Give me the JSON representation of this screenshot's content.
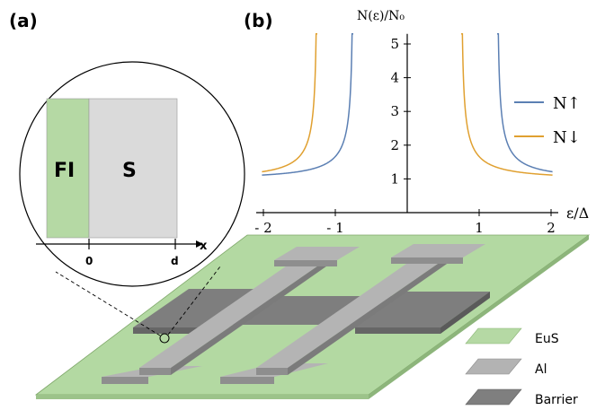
{
  "panels": {
    "a_label": "(a)",
    "b_label": "(b)"
  },
  "inset": {
    "fi_label": "FI",
    "s_label": "S",
    "axis_label": "x",
    "tick_0": "0",
    "tick_d": "d",
    "fi_color": "#b5d9a4",
    "s_color": "#dadada"
  },
  "chart_data": {
    "type": "line",
    "ylabel": "N(ε)/N₀",
    "xlabel": "ε/Δ",
    "xlim": [
      -2.1,
      2.1
    ],
    "ylim": [
      0,
      5.3
    ],
    "x_ticks": [
      -2,
      -1,
      1,
      2
    ],
    "x_tick_labels": [
      "- 2",
      "- 1",
      "1",
      "2"
    ],
    "y_ticks": [
      1,
      2,
      3,
      4,
      5
    ],
    "y_tick_labels": [
      "1",
      "2",
      "3",
      "4",
      "5"
    ],
    "series": [
      {
        "name": "N↑",
        "color": "#5b7fb3",
        "shift": 0.25,
        "branch": "outer-positive"
      },
      {
        "name": "N↓",
        "color": "#e0a030",
        "shift": 0.25,
        "branch": "inner-positive"
      }
    ],
    "legend": {
      "position": "right",
      "up_label": "N↑",
      "down_label": "N↓"
    },
    "grid": false
  },
  "legend_device": {
    "items": [
      {
        "label": "EuS",
        "color": "#b5d9a4"
      },
      {
        "label": "Al",
        "color": "#b3b3b3"
      },
      {
        "label": "Barrier",
        "color": "#7f7f7f"
      }
    ]
  }
}
